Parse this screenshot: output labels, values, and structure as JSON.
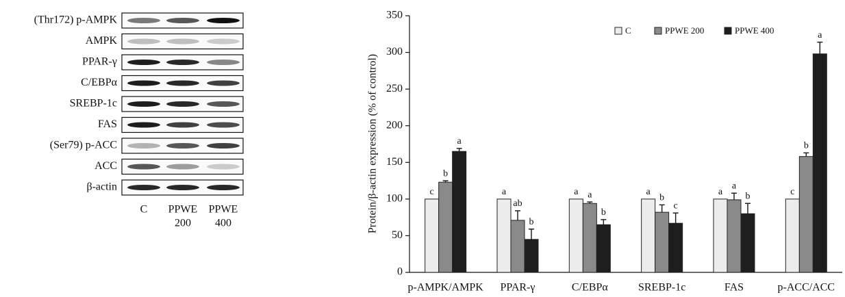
{
  "blot": {
    "rows": [
      "(Thr172) p-AMPK",
      "AMPK",
      "PPAR-γ",
      "C/EBPα",
      "SREBP-1c",
      "FAS",
      "(Ser79) p-ACC",
      "ACC",
      "β-actin"
    ],
    "lanes": [
      [
        "C"
      ],
      [
        "PPWE",
        "200"
      ],
      [
        "PPWE",
        "400"
      ]
    ]
  },
  "chart_data": {
    "type": "bar",
    "y_label": "Protein/β-actin expression (% of control)",
    "categories": [
      "p-AMPK/AMPK",
      "PPAR-γ",
      "C/EBPα",
      "SREBP-1c",
      "FAS",
      "p-ACC/ACC"
    ],
    "series": [
      {
        "name": "C",
        "color": "#ececec",
        "values": [
          100,
          100,
          100,
          100,
          100,
          100
        ],
        "letters": [
          "c",
          "a",
          "a",
          "a",
          "a",
          "c"
        ]
      },
      {
        "name": "PPWE 200",
        "color": "#8a8a8a",
        "values": [
          123,
          71,
          94,
          82,
          99,
          158
        ],
        "errors": [
          2,
          13,
          2,
          10,
          9,
          5
        ],
        "letters": [
          "b",
          "ab",
          "a",
          "b",
          "a",
          "b"
        ]
      },
      {
        "name": "PPWE 400",
        "color": "#1e1e1e",
        "values": [
          165,
          45,
          65,
          67,
          80,
          298
        ],
        "errors": [
          4,
          14,
          7,
          14,
          14,
          16
        ],
        "letters": [
          "a",
          "b",
          "b",
          "c",
          "b",
          "a"
        ]
      }
    ],
    "ylim": [
      0,
      350
    ],
    "yticks": [
      0,
      50,
      100,
      150,
      200,
      250,
      300,
      350
    ],
    "grid": false,
    "legend": "top-right"
  }
}
